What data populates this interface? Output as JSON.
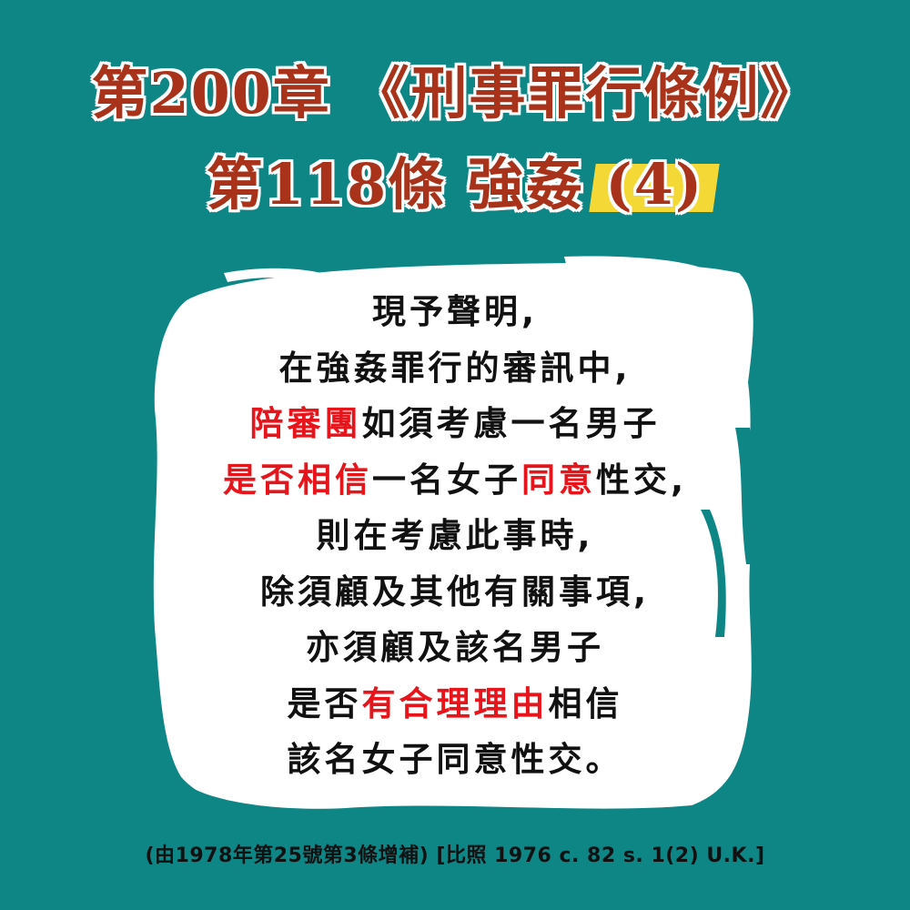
{
  "title": {
    "line1": "第200章 《刑事罪行條例》",
    "line2_main": "第118條 強姦",
    "line2_highlight": "(4)"
  },
  "body": {
    "lines": [
      [
        {
          "t": "現予聲明,",
          "red": false
        }
      ],
      [
        {
          "t": "在強姦罪行的審訊中,",
          "red": false
        }
      ],
      [
        {
          "t": "陪審團",
          "red": true
        },
        {
          "t": "如須考慮一名男子",
          "red": false
        }
      ],
      [
        {
          "t": "是否相信",
          "red": true
        },
        {
          "t": "一名女子",
          "red": false
        },
        {
          "t": "同意",
          "red": true
        },
        {
          "t": "性交,",
          "red": false
        }
      ],
      [
        {
          "t": "則在考慮此事時,",
          "red": false
        }
      ],
      [
        {
          "t": "除須顧及其他有關事項,",
          "red": false
        }
      ],
      [
        {
          "t": "亦須顧及該名男子",
          "red": false
        }
      ],
      [
        {
          "t": "是否",
          "red": false
        },
        {
          "t": "有合理理由",
          "red": true
        },
        {
          "t": "相信",
          "red": false
        }
      ],
      [
        {
          "t": "該名女子同意性交。",
          "red": false
        }
      ]
    ]
  },
  "footer": "(由1978年第25號第3條增補) [比照 1976 c. 82 s. 1(2) U.K.]",
  "colors": {
    "background": "#0e8686",
    "title": "#a8331a",
    "highlight": "#f4d836",
    "accent_red": "#e8141b",
    "paper": "#ffffff"
  }
}
